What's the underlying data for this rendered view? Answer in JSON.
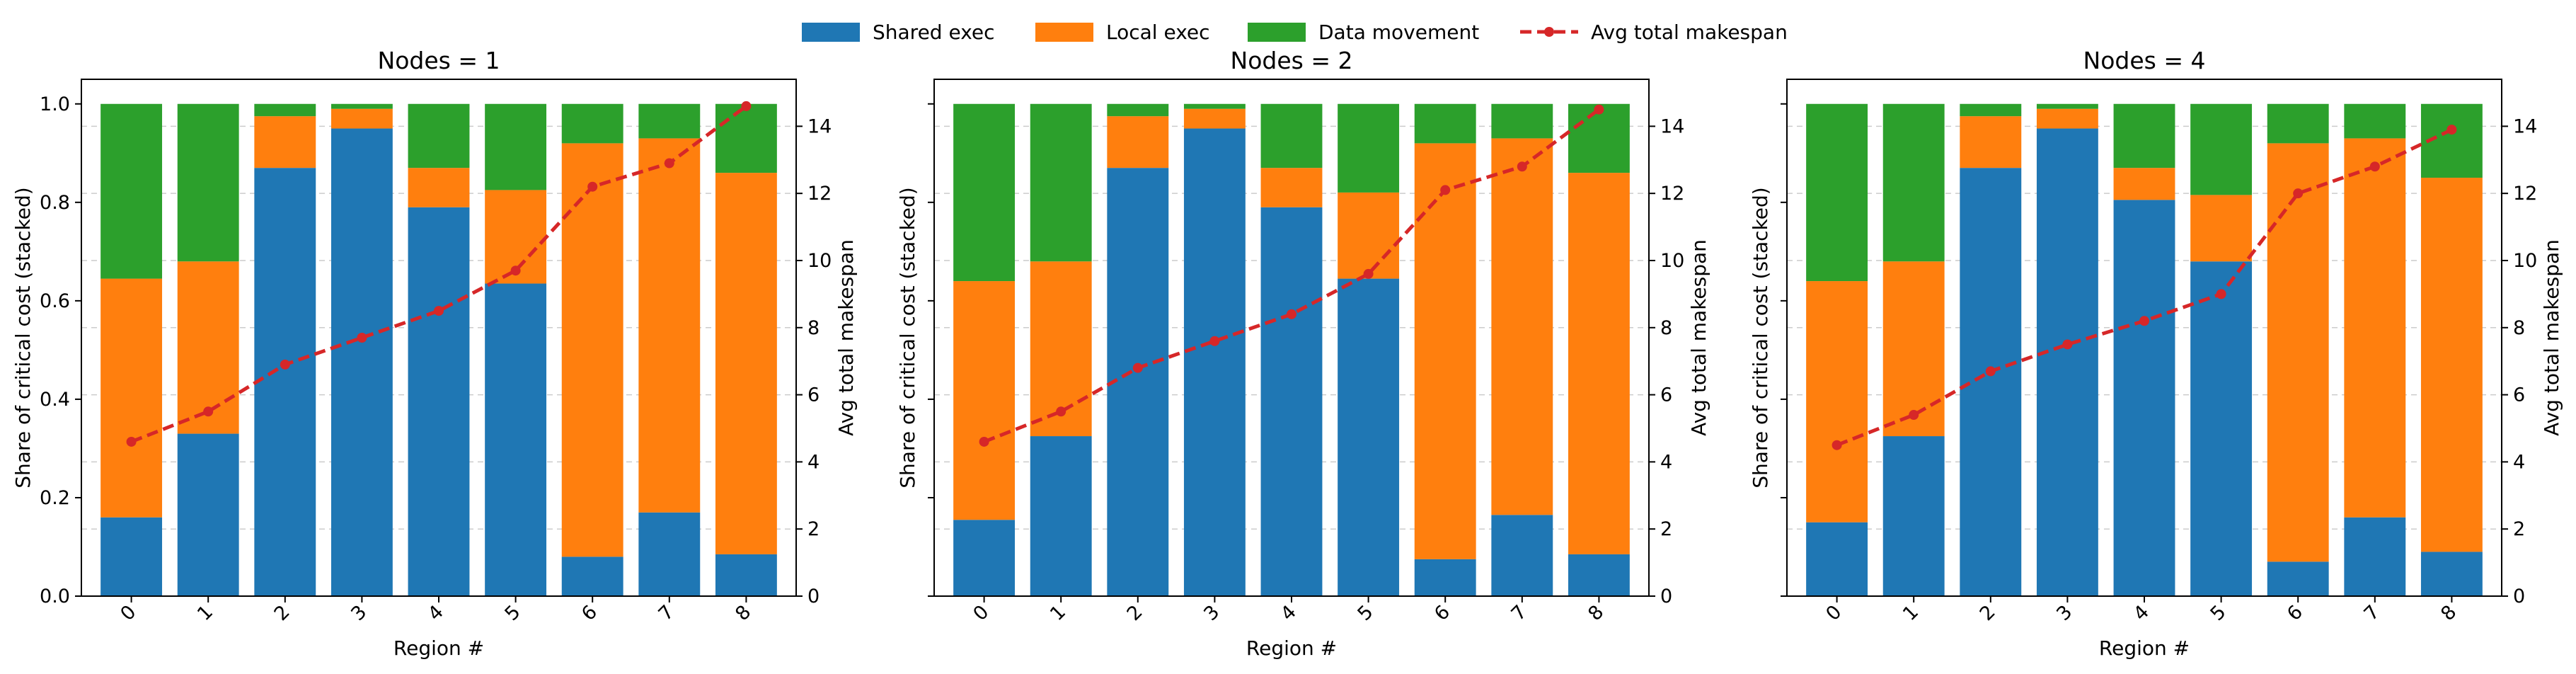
{
  "legend": {
    "items": [
      {
        "label": "Shared exec",
        "color": "#1f77b4",
        "kind": "patch"
      },
      {
        "label": "Local exec",
        "color": "#ff7f0e",
        "kind": "patch"
      },
      {
        "label": "Data movement",
        "color": "#2ca02c",
        "kind": "patch"
      },
      {
        "label": "Avg total makespan",
        "color": "#d62728",
        "kind": "line"
      }
    ],
    "placement": "top-center"
  },
  "chart_data": [
    {
      "type": "bar",
      "stacked": true,
      "title": "Nodes = 1",
      "xlabel": "Region #",
      "ylabel": "Share of critical cost (stacked)",
      "y2label": "Avg total makespan",
      "categories": [
        "0",
        "1",
        "2",
        "3",
        "4",
        "5",
        "6",
        "7",
        "8"
      ],
      "ylim": [
        0,
        1.05
      ],
      "y2lim": [
        0,
        15.4
      ],
      "yticks": [
        "0.0",
        "0.2",
        "0.4",
        "0.6",
        "0.8",
        "1.0"
      ],
      "y2ticks": [
        "0",
        "2",
        "4",
        "6",
        "8",
        "10",
        "12",
        "14"
      ],
      "show_left_tick_labels": true,
      "grid": true,
      "series": [
        {
          "name": "Shared exec",
          "color": "#1f77b4",
          "values": [
            0.16,
            0.33,
            0.87,
            0.95,
            0.79,
            0.635,
            0.08,
            0.17,
            0.085
          ]
        },
        {
          "name": "Local exec",
          "color": "#ff7f0e",
          "values": [
            0.485,
            0.35,
            0.105,
            0.04,
            0.08,
            0.19,
            0.84,
            0.76,
            0.775
          ]
        },
        {
          "name": "Data movement",
          "color": "#2ca02c",
          "values": [
            0.355,
            0.32,
            0.025,
            0.01,
            0.13,
            0.175,
            0.08,
            0.07,
            0.14
          ]
        }
      ],
      "line": {
        "name": "Avg total makespan",
        "color": "#d62728",
        "values": [
          4.6,
          5.5,
          6.9,
          7.7,
          8.5,
          9.7,
          12.2,
          12.9,
          14.6
        ]
      }
    },
    {
      "type": "bar",
      "stacked": true,
      "title": "Nodes = 2",
      "xlabel": "Region #",
      "ylabel": "Share of critical cost (stacked)",
      "y2label": "Avg total makespan",
      "categories": [
        "0",
        "1",
        "2",
        "3",
        "4",
        "5",
        "6",
        "7",
        "8"
      ],
      "ylim": [
        0,
        1.05
      ],
      "y2lim": [
        0,
        15.4
      ],
      "yticks": [
        "0.0",
        "0.2",
        "0.4",
        "0.6",
        "0.8",
        "1.0"
      ],
      "y2ticks": [
        "0",
        "2",
        "4",
        "6",
        "8",
        "10",
        "12",
        "14"
      ],
      "show_left_tick_labels": false,
      "grid": true,
      "series": [
        {
          "name": "Shared exec",
          "color": "#1f77b4",
          "values": [
            0.155,
            0.325,
            0.87,
            0.95,
            0.79,
            0.645,
            0.075,
            0.165,
            0.085
          ]
        },
        {
          "name": "Local exec",
          "color": "#ff7f0e",
          "values": [
            0.485,
            0.355,
            0.105,
            0.04,
            0.08,
            0.175,
            0.845,
            0.765,
            0.775
          ]
        },
        {
          "name": "Data movement",
          "color": "#2ca02c",
          "values": [
            0.36,
            0.32,
            0.025,
            0.01,
            0.13,
            0.18,
            0.08,
            0.07,
            0.14
          ]
        }
      ],
      "line": {
        "name": "Avg total makespan",
        "color": "#d62728",
        "values": [
          4.6,
          5.5,
          6.8,
          7.6,
          8.4,
          9.6,
          12.1,
          12.8,
          14.5
        ]
      }
    },
    {
      "type": "bar",
      "stacked": true,
      "title": "Nodes = 4",
      "xlabel": "Region #",
      "ylabel": "Share of critical cost (stacked)",
      "y2label": "Avg total makespan",
      "categories": [
        "0",
        "1",
        "2",
        "3",
        "4",
        "5",
        "6",
        "7",
        "8"
      ],
      "ylim": [
        0,
        1.05
      ],
      "y2lim": [
        0,
        15.4
      ],
      "yticks": [
        "0.0",
        "0.2",
        "0.4",
        "0.6",
        "0.8",
        "1.0"
      ],
      "y2ticks": [
        "0",
        "2",
        "4",
        "6",
        "8",
        "10",
        "12",
        "14"
      ],
      "show_left_tick_labels": false,
      "grid": true,
      "series": [
        {
          "name": "Shared exec",
          "color": "#1f77b4",
          "values": [
            0.15,
            0.325,
            0.87,
            0.95,
            0.805,
            0.68,
            0.07,
            0.16,
            0.09
          ]
        },
        {
          "name": "Local exec",
          "color": "#ff7f0e",
          "values": [
            0.49,
            0.355,
            0.105,
            0.04,
            0.065,
            0.135,
            0.85,
            0.77,
            0.76
          ]
        },
        {
          "name": "Data movement",
          "color": "#2ca02c",
          "values": [
            0.36,
            0.32,
            0.025,
            0.01,
            0.13,
            0.185,
            0.08,
            0.07,
            0.15
          ]
        }
      ],
      "line": {
        "name": "Avg total makespan",
        "color": "#d62728",
        "values": [
          4.5,
          5.4,
          6.7,
          7.5,
          8.2,
          9.0,
          12.0,
          12.8,
          13.9
        ]
      }
    }
  ]
}
